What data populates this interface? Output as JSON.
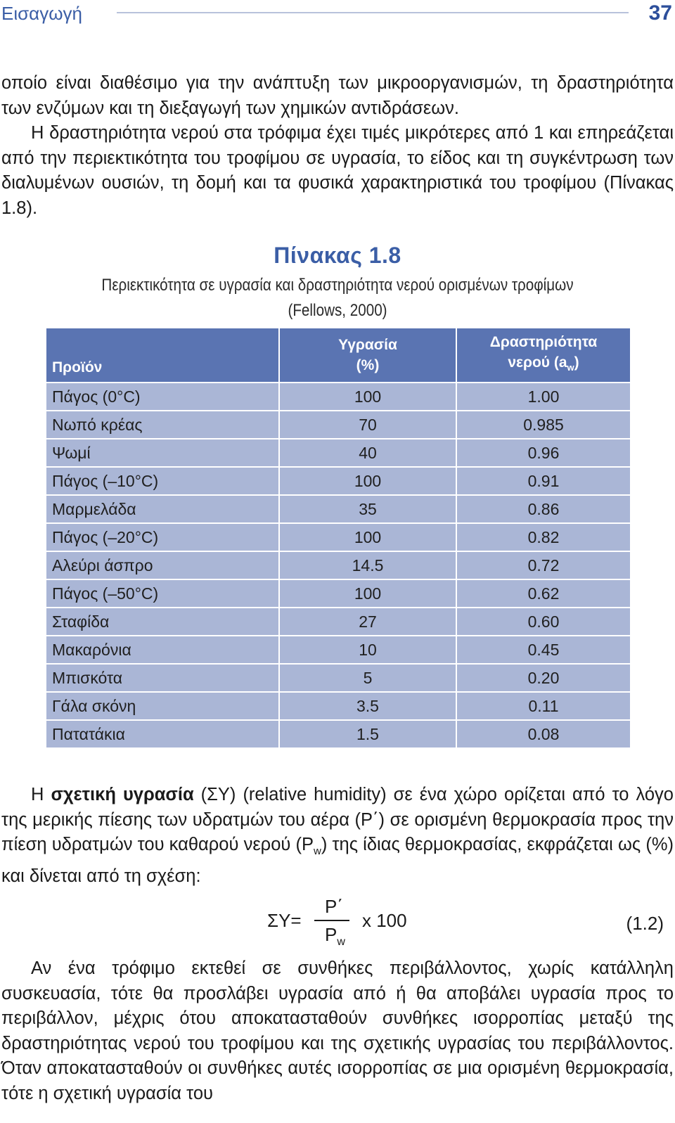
{
  "header": {
    "section": "Εισαγωγή",
    "page_number": "37"
  },
  "intro": {
    "line1": "οποίο είναι διαθέσιμο για την ανάπτυξη των μικροοργανισμών, τη δραστηριότητα των ενζύμων και τη διεξαγωγή των χημικών αντιδράσεων.",
    "line2": "Η δραστηριότητα νερού στα τρόφιμα έχει τιμές μικρότερες από 1 και επηρεάζεται από την περιεκτικότητα του τροφίμου σε υγρασία, το είδος και τη συγκέντρωση των διαλυμένων ουσιών, τη δομή και τα φυσικά χαρακτηριστικά του τροφίμου (Πίνακας 1.8)."
  },
  "table": {
    "title": "Πίνακας 1.8",
    "caption": "Περιεκτικότητα σε υγρασία και δραστηριότητα νερού ορισμένων τροφίμων (Fellows, 2000)",
    "headers": {
      "product": "Προϊόν",
      "moisture_line1": "Υγρασία",
      "moisture_line2": "(%)",
      "activity_line1": "Δραστηριότητα",
      "activity_line2": "νερού (a",
      "activity_sub": "w",
      "activity_end": ")"
    },
    "rows": [
      {
        "product": "Πάγος (0°C)",
        "moisture": "100",
        "aw": "1.00"
      },
      {
        "product": "Νωπό κρέας",
        "moisture": "70",
        "aw": "0.985"
      },
      {
        "product": "Ψωμί",
        "moisture": "40",
        "aw": "0.96"
      },
      {
        "product": "Πάγος (–10°C)",
        "moisture": "100",
        "aw": "0.91"
      },
      {
        "product": "Μαρμελάδα",
        "moisture": "35",
        "aw": "0.86"
      },
      {
        "product": "Πάγος (–20°C)",
        "moisture": "100",
        "aw": "0.82"
      },
      {
        "product": "Αλεύρι άσπρο",
        "moisture": "14.5",
        "aw": "0.72"
      },
      {
        "product": "Πάγος (–50°C)",
        "moisture": "100",
        "aw": "0.62"
      },
      {
        "product": "Σταφίδα",
        "moisture": "27",
        "aw": "0.60"
      },
      {
        "product": "Μακαρόνια",
        "moisture": "10",
        "aw": "0.45"
      },
      {
        "product": "Μπισκότα",
        "moisture": "5",
        "aw": "0.20"
      },
      {
        "product": "Γάλα σκόνη",
        "moisture": "3.5",
        "aw": "0.11"
      },
      {
        "product": "Πατατάκια",
        "moisture": "1.5",
        "aw": "0.08"
      }
    ]
  },
  "definition": {
    "lead": "Η ",
    "term": "σχετική υγρασία",
    "rest_a": " (ΣΥ) (relative humidity) σε ένα χώρο ορίζεται από το λόγο της μερικής πίεσης των υδρατμών του αέρα (P΄) σε ορισμένη θερμοκρασία προς την πίεση υδρατμών του καθαρού νερού (P",
    "rest_sub": "w",
    "rest_b": ") της ίδιας θερμοκρασίας, εκφράζεται ως (%) και δίνεται από τη σχέση:"
  },
  "formula": {
    "lhs": "ΣΥ=",
    "numerator": "P΄",
    "denominator": "P",
    "denominator_sub": "w",
    "multiplier": "x 100",
    "equation_number": "(1.2)"
  },
  "closing": "Αν ένα τρόφιμο εκτεθεί σε συνθήκες περιβάλλοντος, χωρίς κατάλληλη συσκευασία, τότε θα προσλάβει υγρασία από ή θα αποβάλει υγρασία προς το περιβάλλον, μέχρις ότου αποκατασταθούν συνθήκες ισορροπίας μεταξύ της δραστηριότητας νερού του τροφίμου και της σχετικής υγρασίας του περιβάλλοντος. Όταν αποκατασταθούν οι συνθήκες αυτές ισορροπίας σε μια ορισμένη θερμοκρασία, τότε η σχετική υγρασία του"
}
